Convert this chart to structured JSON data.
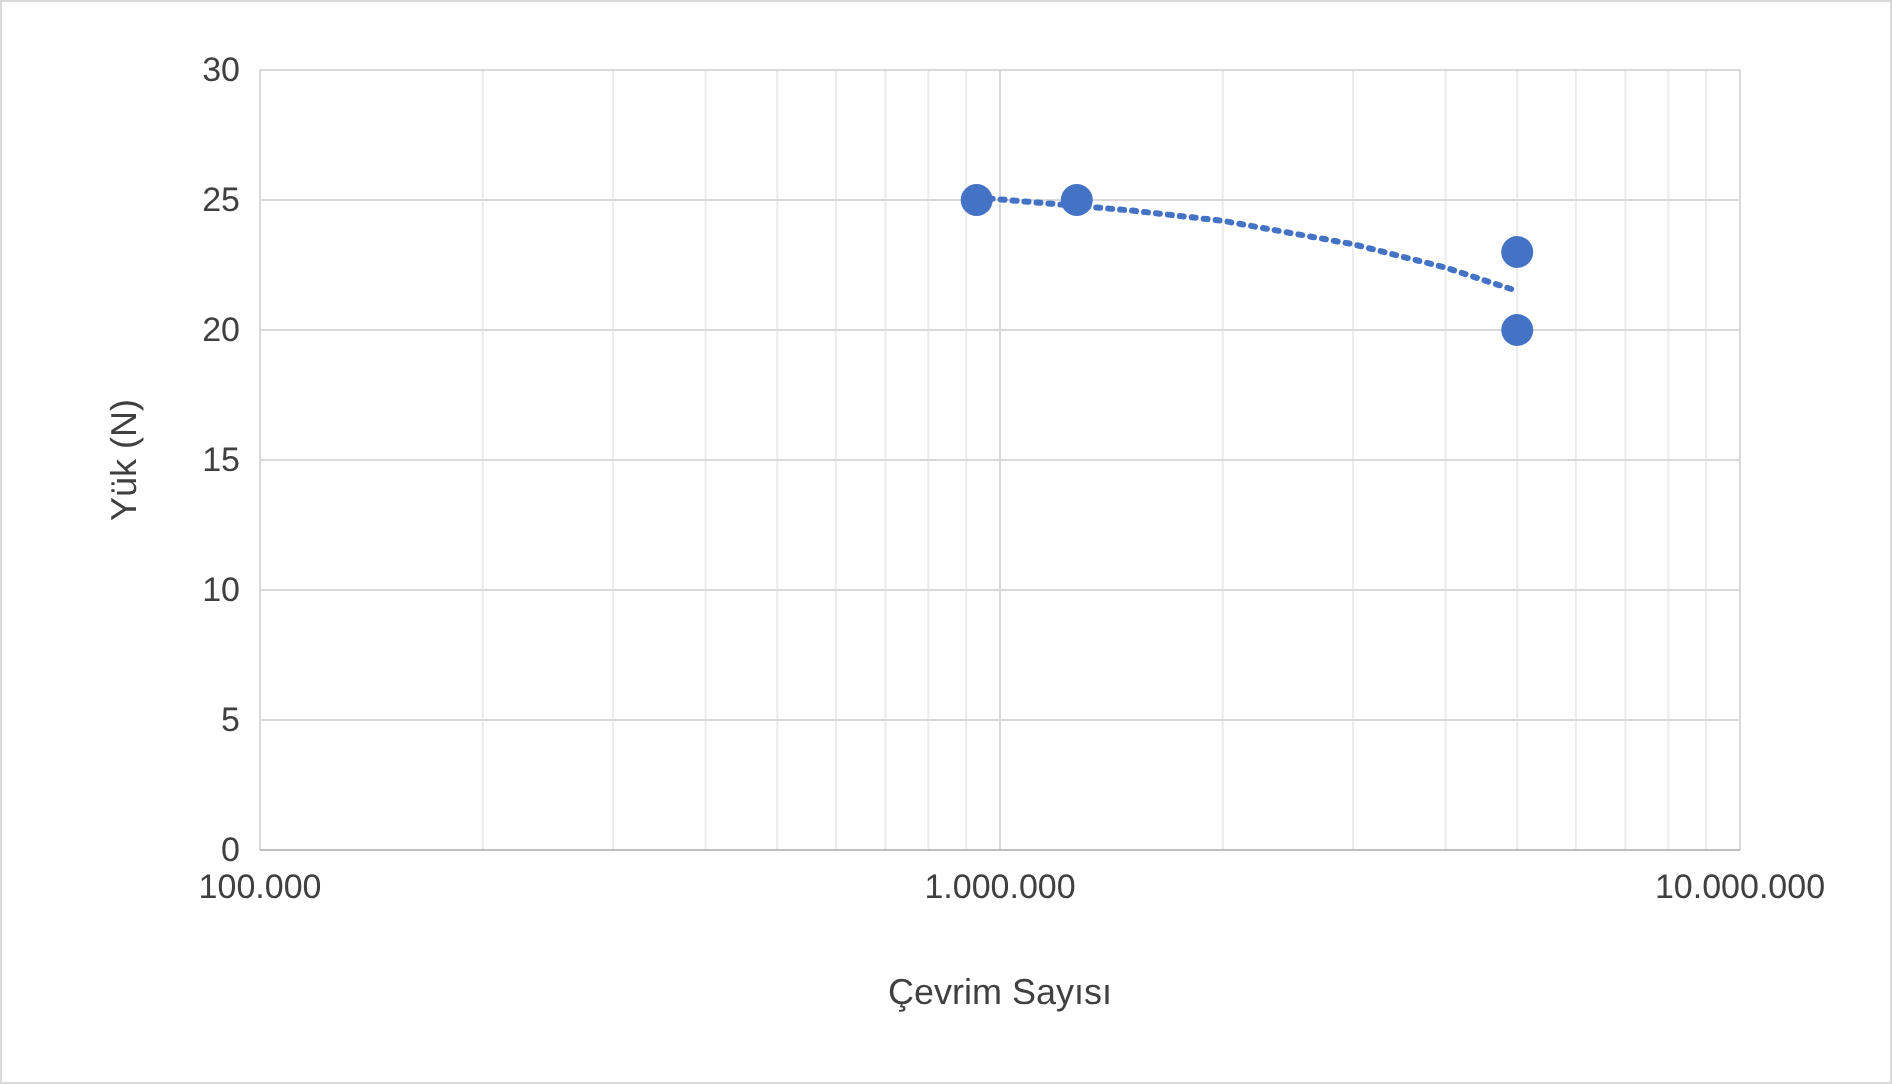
{
  "chart_data": {
    "type": "scatter",
    "xlabel": "Çevrim Sayısı",
    "ylabel": "Yük (N)",
    "log": "x",
    "grid": true,
    "marker": "circle",
    "xlim": [
      100000,
      10000000
    ],
    "ylim": [
      0,
      30
    ],
    "xticks": [
      {
        "value": 100000,
        "label": "100.000"
      },
      {
        "value": 200000,
        "label": null
      },
      {
        "value": 300000,
        "label": null
      },
      {
        "value": 400000,
        "label": null
      },
      {
        "value": 500000,
        "label": null
      },
      {
        "value": 600000,
        "label": null
      },
      {
        "value": 700000,
        "label": null
      },
      {
        "value": 800000,
        "label": null
      },
      {
        "value": 900000,
        "label": null
      },
      {
        "value": 1000000,
        "label": "1.000.000"
      },
      {
        "value": 2000000,
        "label": null
      },
      {
        "value": 3000000,
        "label": null
      },
      {
        "value": 4000000,
        "label": null
      },
      {
        "value": 5000000,
        "label": null
      },
      {
        "value": 6000000,
        "label": null
      },
      {
        "value": 7000000,
        "label": null
      },
      {
        "value": 8000000,
        "label": null
      },
      {
        "value": 9000000,
        "label": null
      },
      {
        "value": 10000000,
        "label": "10.000.000"
      }
    ],
    "yticks": [
      0,
      5,
      10,
      15,
      20,
      25,
      30
    ],
    "series": [
      {
        "color": "#4472c4",
        "x": [
          930000,
          1270000,
          5000000,
          5000000
        ],
        "values": [
          25,
          25,
          23,
          20
        ]
      },
      {
        "type": "line",
        "color": "#4472c4",
        "line_style": "dotted",
        "marker": "none",
        "x": [
          930000,
          1500000,
          2000000,
          3000000,
          4000000,
          5000000
        ],
        "values": [
          25.1,
          24.6,
          24.2,
          23.3,
          22.4,
          21.5
        ]
      }
    ]
  }
}
